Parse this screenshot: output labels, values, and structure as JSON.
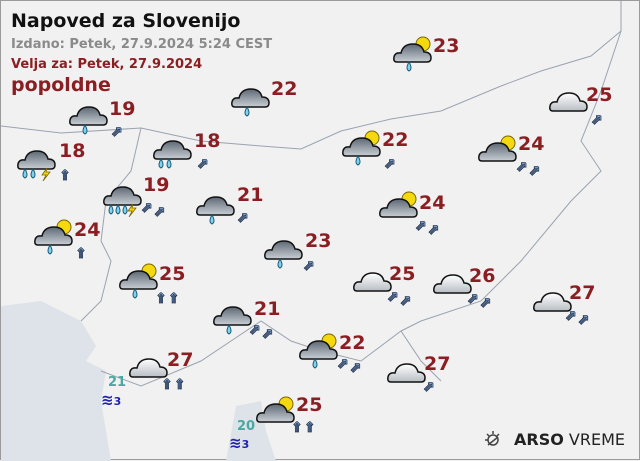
{
  "header": {
    "title": "Napoved za Slovenijo",
    "issued": "Izdano: Petek, 27.9.2024 5:24 CEST",
    "valid": "Velja za: Petek, 27.9.2024",
    "period": "popoldne"
  },
  "stations": [
    {
      "icon": "overcast-rain",
      "temp": "19",
      "wind": {
        "dir": "NE",
        "count": 1
      }
    },
    {
      "icon": "overcast-rain",
      "temp": "22",
      "wind": {
        "dir": "",
        "count": 0
      }
    },
    {
      "icon": "partly-cloudy-rain",
      "temp": "23",
      "wind": {
        "dir": "",
        "count": 0
      }
    },
    {
      "icon": "partly-cloudy",
      "temp": "25",
      "wind": {
        "dir": "NE",
        "count": 1
      }
    },
    {
      "icon": "overcast-heavy-rain-thunder",
      "temp": "18",
      "wind": {
        "dir": "N",
        "count": 1
      }
    },
    {
      "icon": "overcast-heavy-rain",
      "temp": "18",
      "wind": {
        "dir": "NE",
        "count": 1
      }
    },
    {
      "icon": "partly-cloudy-rain",
      "temp": "22",
      "wind": {
        "dir": "NE",
        "count": 1
      }
    },
    {
      "icon": "mostly-cloudy",
      "temp": "24",
      "wind": {
        "dir": "NE",
        "count": 2
      }
    },
    {
      "icon": "overcast-very-heavy-rain-thunder",
      "temp": "19",
      "wind": {
        "dir": "NE",
        "count": 2
      }
    },
    {
      "icon": "overcast-rain",
      "temp": "21",
      "wind": {
        "dir": "NE",
        "count": 1
      }
    },
    {
      "icon": "mostly-cloudy",
      "temp": "24",
      "wind": {
        "dir": "NE",
        "count": 2
      }
    },
    {
      "icon": "partly-cloudy-rain",
      "temp": "24",
      "wind": {
        "dir": "N",
        "count": 1
      }
    },
    {
      "icon": "overcast-rain",
      "temp": "23",
      "wind": {
        "dir": "NE",
        "count": 1
      }
    },
    {
      "icon": "partly-cloudy-rain",
      "temp": "25",
      "wind": {
        "dir": "N",
        "count": 2
      }
    },
    {
      "icon": "partly-cloudy",
      "temp": "25",
      "wind": {
        "dir": "NE",
        "count": 2
      }
    },
    {
      "icon": "partly-cloudy",
      "temp": "26",
      "wind": {
        "dir": "NE",
        "count": 2
      }
    },
    {
      "icon": "partly-cloudy",
      "temp": "27",
      "wind": {
        "dir": "NE",
        "count": 2
      }
    },
    {
      "icon": "overcast-rain",
      "temp": "21",
      "wind": {
        "dir": "NE",
        "count": 2
      }
    },
    {
      "icon": "partly-cloudy-rain",
      "temp": "22",
      "wind": {
        "dir": "NE",
        "count": 2
      }
    },
    {
      "icon": "partly-cloudy",
      "temp": "27",
      "wind": {
        "dir": "N",
        "count": 2
      }
    },
    {
      "icon": "partly-cloudy",
      "temp": "27",
      "wind": {
        "dir": "NE",
        "count": 1
      }
    },
    {
      "icon": "mostly-cloudy",
      "temp": "25",
      "wind": {
        "dir": "N",
        "count": 2
      }
    }
  ],
  "sea": [
    {
      "temp": "21",
      "waves": "3"
    },
    {
      "temp": "20",
      "waves": "3"
    }
  ],
  "logo": {
    "brand": "ARSO",
    "product": "VREME"
  },
  "colors": {
    "temp": "#8b1e22",
    "sea_temp": "#4aa8a0",
    "waves": "#2222aa",
    "issued": "#8a8a8a"
  }
}
